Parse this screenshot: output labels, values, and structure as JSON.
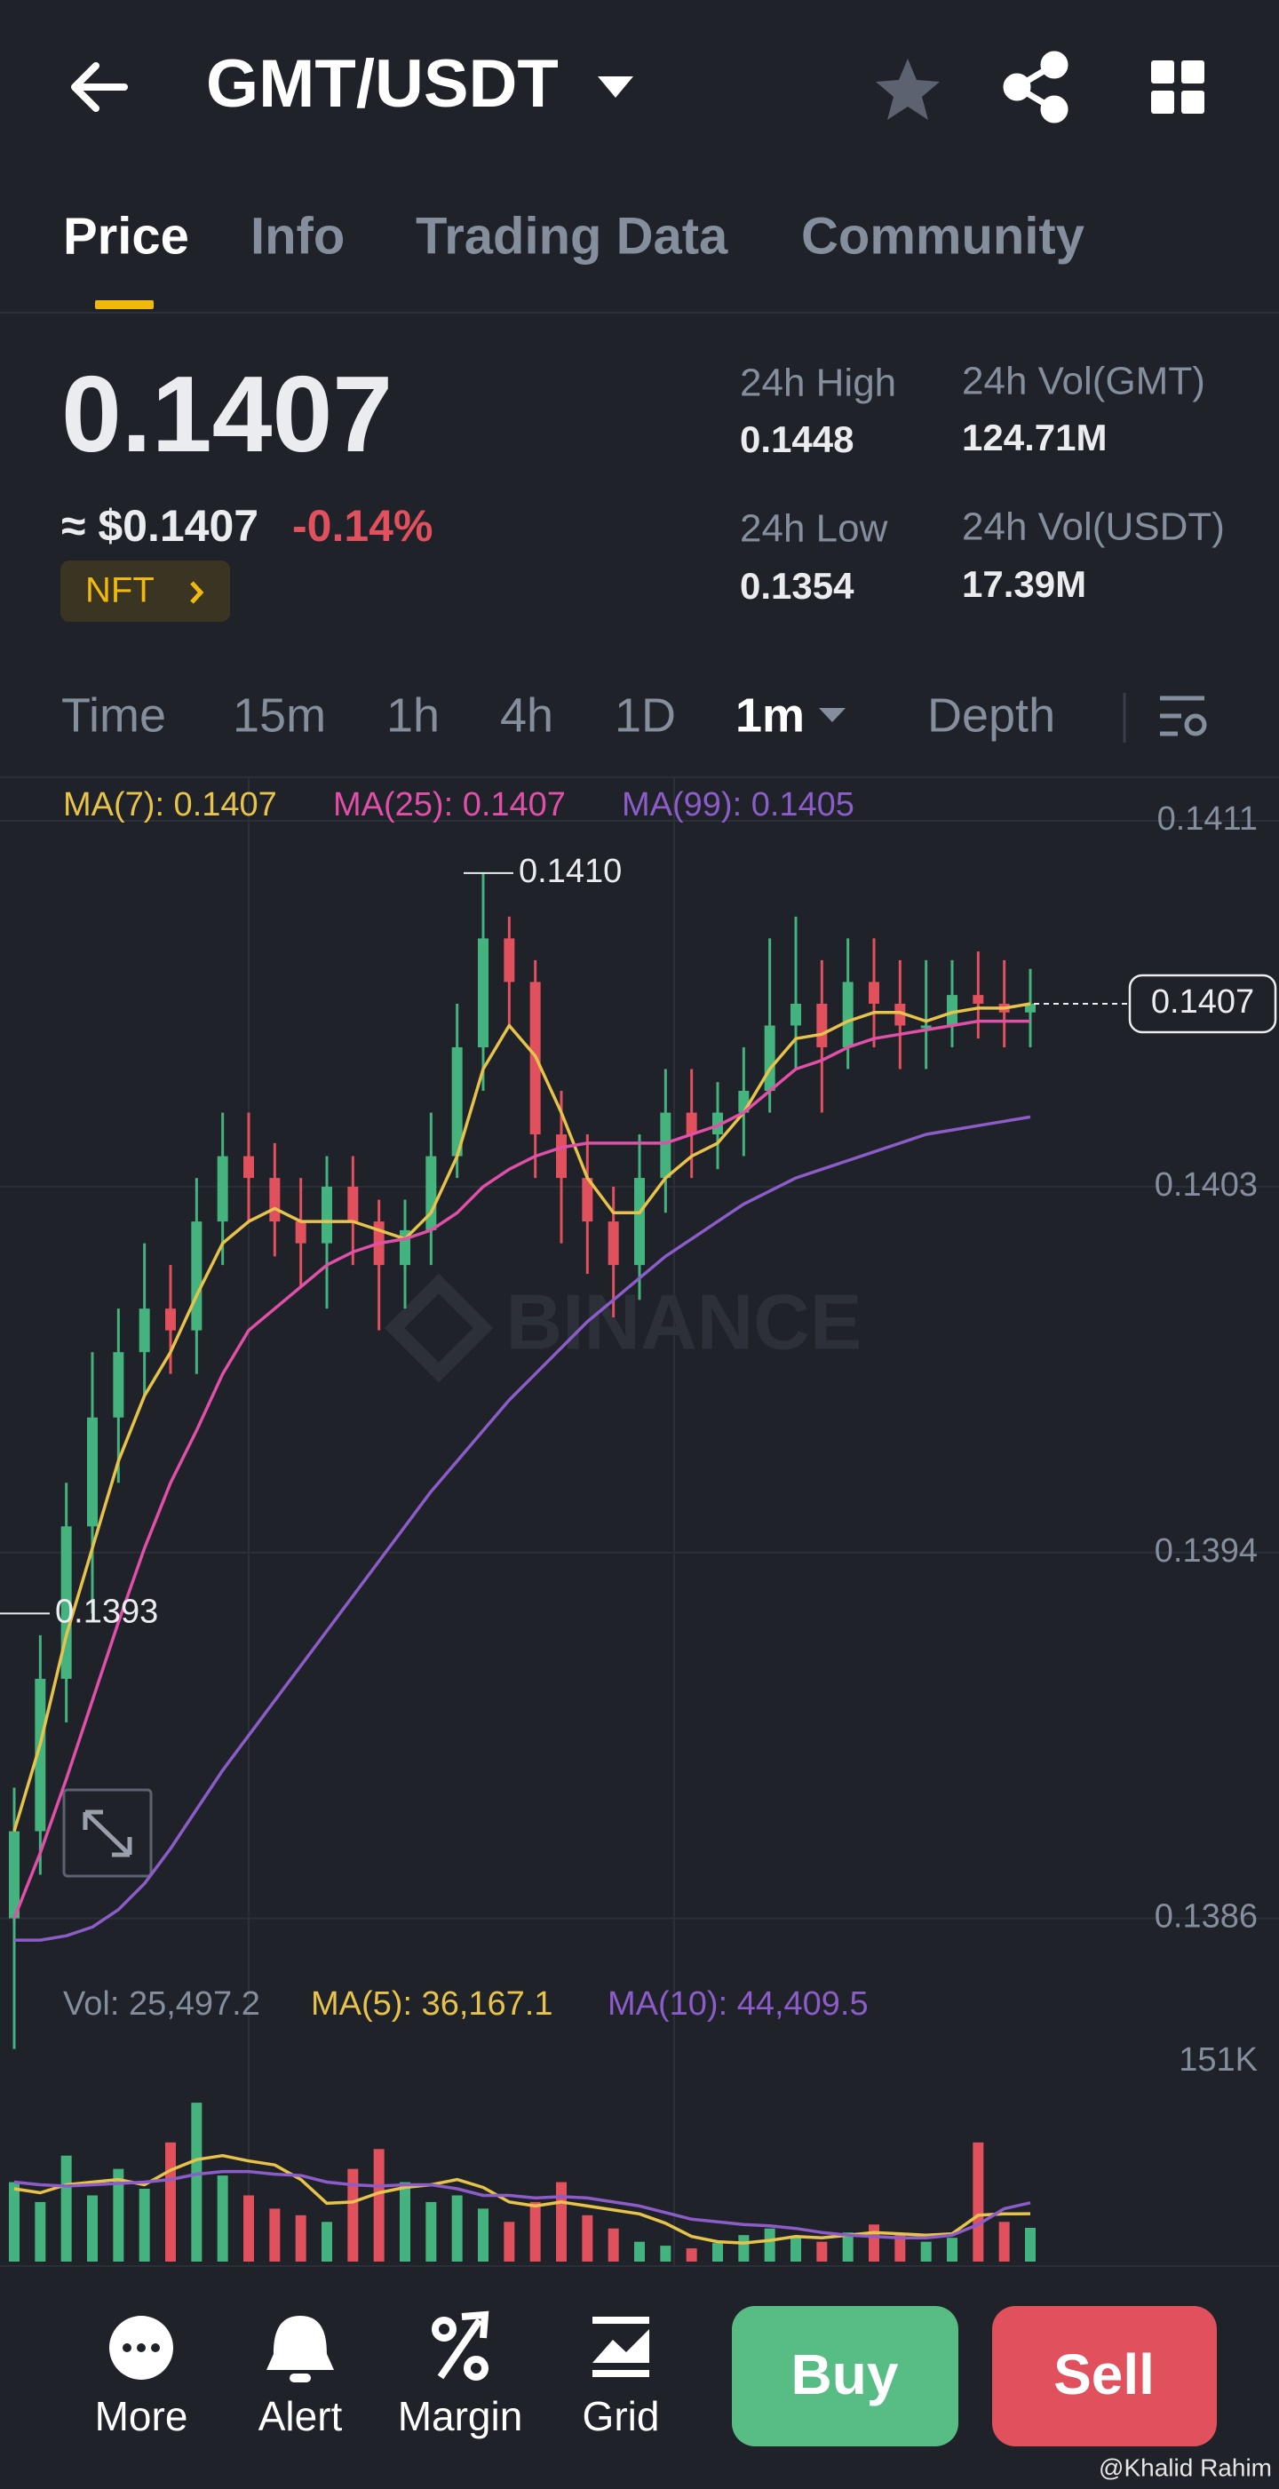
{
  "header": {
    "title": "GMT/USDT"
  },
  "tabs": [
    "Price",
    "Info",
    "Trading Data",
    "Community"
  ],
  "price": {
    "last": "0.1407",
    "usd": "≈ $0.1407",
    "change": "-0.14%",
    "tag": "NFT"
  },
  "stats": [
    {
      "label": "24h High",
      "value": "0.1448"
    },
    {
      "label": "24h Vol(GMT)",
      "value": "124.71M"
    },
    {
      "label": "24h Low",
      "value": "0.1354"
    },
    {
      "label": "24h Vol(USDT)",
      "value": "17.39M"
    }
  ],
  "intervals": [
    "Time",
    "15m",
    "1h",
    "4h",
    "1D",
    "1m",
    "Depth"
  ],
  "chart_data": {
    "type": "candlestick",
    "watermark": "BINANCE",
    "up_color": "#45b37e",
    "down_color": "#e0505d",
    "open": [
      0.1386,
      0.1388,
      0.13915,
      0.1395,
      0.13975,
      0.1399,
      0.14,
      0.13995,
      0.1402,
      0.14035,
      0.1403,
      0.1402,
      0.14015,
      0.14028,
      0.1402,
      0.1401,
      0.14018,
      0.14035,
      0.1406,
      0.14085,
      0.14075,
      0.1404,
      0.1403,
      0.1402,
      0.1401,
      0.1403,
      0.14045,
      0.1404,
      0.14045,
      0.1405,
      0.14065,
      0.1407,
      0.1406,
      0.14075,
      0.1407,
      0.14065,
      0.14065,
      0.14072,
      0.1407,
      0.14068
    ],
    "high": [
      0.1389,
      0.13925,
      0.1396,
      0.1399,
      0.14,
      0.14015,
      0.1401,
      0.1403,
      0.14045,
      0.14045,
      0.14038,
      0.1403,
      0.14035,
      0.14035,
      0.14025,
      0.14025,
      0.14045,
      0.1407,
      0.141,
      0.1409,
      0.1408,
      0.1405,
      0.1404,
      0.14028,
      0.1404,
      0.14055,
      0.14055,
      0.14052,
      0.1406,
      0.14085,
      0.1409,
      0.1408,
      0.14085,
      0.14085,
      0.1408,
      0.1408,
      0.1408,
      0.14082,
      0.1408,
      0.14078
    ],
    "low": [
      0.1383,
      0.1387,
      0.13905,
      0.1393,
      0.1396,
      0.1398,
      0.13985,
      0.13985,
      0.1401,
      0.1402,
      0.14012,
      0.14005,
      0.14,
      0.1401,
      0.13995,
      0.14,
      0.1401,
      0.1403,
      0.1405,
      0.14065,
      0.1403,
      0.14015,
      0.14008,
      0.13998,
      0.14002,
      0.14022,
      0.1403,
      0.14032,
      0.14035,
      0.14045,
      0.14055,
      0.14045,
      0.14055,
      0.1406,
      0.14055,
      0.14055,
      0.1406,
      0.14062,
      0.1406,
      0.1406
    ],
    "close": [
      0.1388,
      0.13915,
      0.1395,
      0.13975,
      0.1399,
      0.14,
      0.13995,
      0.1402,
      0.14035,
      0.1403,
      0.1402,
      0.14015,
      0.14028,
      0.1402,
      0.1401,
      0.14018,
      0.14035,
      0.1406,
      0.14085,
      0.14075,
      0.1404,
      0.1403,
      0.1402,
      0.1401,
      0.1403,
      0.14045,
      0.1404,
      0.14045,
      0.1405,
      0.14065,
      0.1407,
      0.1406,
      0.14075,
      0.1407,
      0.14065,
      0.14065,
      0.14072,
      0.1407,
      0.14068,
      0.1407
    ],
    "series": [
      {
        "name": "MA(7): 0.1407",
        "color": "#e8c34b",
        "values": [
          0.1388,
          0.139,
          0.13925,
          0.13945,
          0.13965,
          0.1398,
          0.1399,
          0.14003,
          0.14015,
          0.1402,
          0.14023,
          0.1402,
          0.1402,
          0.1402,
          0.14018,
          0.14016,
          0.14022,
          0.14035,
          0.14055,
          0.14065,
          0.14058,
          0.14045,
          0.1403,
          0.14022,
          0.14022,
          0.1403,
          0.14035,
          0.14038,
          0.14045,
          0.14055,
          0.14062,
          0.14063,
          0.14066,
          0.14068,
          0.14068,
          0.14066,
          0.14068,
          0.14069,
          0.14069,
          0.1407
        ]
      },
      {
        "name": "MA(25): 0.1407",
        "color": "#e04fa8",
        "values": [
          0.1386,
          0.13875,
          0.13892,
          0.1391,
          0.13928,
          0.13945,
          0.1396,
          0.13972,
          0.13985,
          0.13995,
          0.14,
          0.14005,
          0.1401,
          0.14013,
          0.14015,
          0.14016,
          0.14018,
          0.14022,
          0.14028,
          0.14032,
          0.14035,
          0.14037,
          0.14038,
          0.14038,
          0.14038,
          0.14038,
          0.1404,
          0.14042,
          0.14045,
          0.1405,
          0.14055,
          0.14057,
          0.1406,
          0.14062,
          0.14063,
          0.14064,
          0.14065,
          0.14066,
          0.14066,
          0.14066
        ]
      },
      {
        "name": "MA(99): 0.1405",
        "color": "#8c5cc8",
        "values": [
          0.13855,
          0.13855,
          0.13856,
          0.13858,
          0.13862,
          0.13868,
          0.13876,
          0.13885,
          0.13894,
          0.13902,
          0.1391,
          0.13918,
          0.13926,
          0.13934,
          0.13942,
          0.1395,
          0.13958,
          0.13965,
          0.13972,
          0.13979,
          0.13985,
          0.13991,
          0.13997,
          0.14002,
          0.14007,
          0.14012,
          0.14016,
          0.1402,
          0.14024,
          0.14027,
          0.1403,
          0.14032,
          0.14034,
          0.14036,
          0.14038,
          0.1404,
          0.14041,
          0.14042,
          0.14043,
          0.14044
        ]
      }
    ],
    "ylim": [
      0.13854,
      0.14122
    ],
    "yticks": [
      {
        "value": 0.14112,
        "label": "0.1411"
      },
      {
        "value": 0.14028,
        "label": "0.1403"
      },
      {
        "value": 0.13944,
        "label": "0.1394"
      },
      {
        "value": 0.1386,
        "label": "0.1386"
      }
    ],
    "annotations": [
      {
        "value": 0.141,
        "label": "0.1410"
      },
      {
        "value": 0.1393,
        "label": "0.1393"
      }
    ],
    "last_price": {
      "value": 0.1407,
      "label": "0.1407"
    },
    "grid": true
  },
  "volume": {
    "legend": [
      "Vol: 25,497.2",
      "MA(5): 36,167.1",
      "MA(10): 44,409.5"
    ],
    "values": [
      60000,
      45000,
      80000,
      50000,
      70000,
      55000,
      90000,
      120000,
      65000,
      50000,
      40000,
      35000,
      30000,
      70000,
      85000,
      60000,
      45000,
      50000,
      40000,
      30000,
      45000,
      60000,
      35000,
      25000,
      15000,
      12000,
      10000,
      14000,
      20000,
      25000,
      18000,
      15000,
      22000,
      28000,
      20000,
      15000,
      18000,
      90000,
      30000,
      25497.2
    ],
    "ma5": {
      "color": "#e8c34b",
      "values": [
        55000,
        52000,
        58000,
        60000,
        62000,
        58000,
        69000,
        77000,
        80000,
        76000,
        73000,
        62000,
        44000,
        45000,
        52000,
        56000,
        58000,
        62000,
        56000,
        45000,
        42000,
        45000,
        42000,
        39000,
        36000,
        29000,
        19000,
        15000,
        14000,
        16000,
        19000,
        18000,
        20000,
        22000,
        21000,
        20000,
        21000,
        35000,
        36000,
        36167.1
      ]
    },
    "ma10": {
      "color": "#8c5cc8",
      "values": [
        60000,
        58000,
        57000,
        58000,
        59000,
        60000,
        62000,
        66000,
        68000,
        68000,
        66000,
        65000,
        60000,
        58000,
        57000,
        58000,
        58000,
        55000,
        50000,
        50000,
        48000,
        49000,
        48000,
        45000,
        42000,
        37000,
        32000,
        30000,
        28000,
        27000,
        25000,
        22000,
        20000,
        19000,
        18000,
        18000,
        20000,
        28000,
        40000,
        44409.5
      ]
    },
    "ylim": [
      0,
      165000
    ],
    "yticks": [
      {
        "value": 151000,
        "label": "151K"
      }
    ]
  },
  "bottom": {
    "tools": [
      "More",
      "Alert",
      "Margin",
      "Grid"
    ],
    "buy": "Buy",
    "sell": "Sell"
  },
  "credit": "@Khalid Rahim"
}
